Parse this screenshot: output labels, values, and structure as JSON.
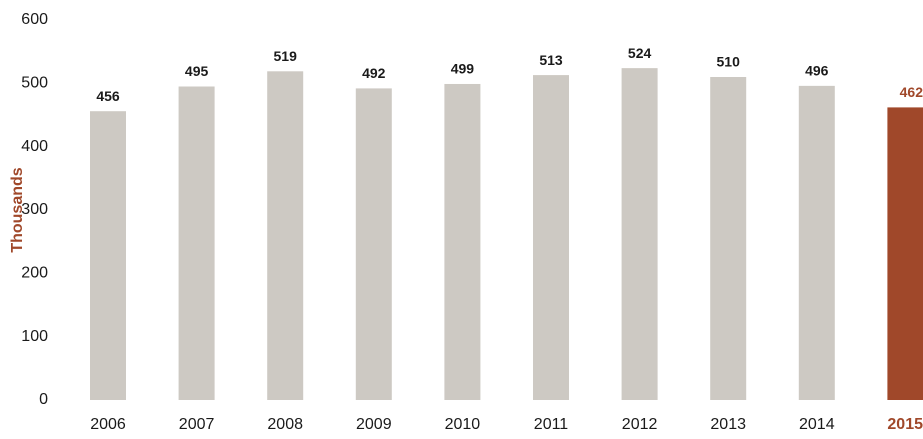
{
  "chart_data": {
    "type": "bar",
    "y_label": "Thousands",
    "categories": [
      "2006",
      "2007",
      "2008",
      "2009",
      "2010",
      "2011",
      "2012",
      "2013",
      "2014",
      "2015"
    ],
    "values": [
      456,
      495,
      519,
      492,
      499,
      513,
      524,
      510,
      496,
      462
    ],
    "colors": [
      "#cdc9c3",
      "#cdc9c3",
      "#cdc9c3",
      "#cdc9c3",
      "#cdc9c3",
      "#cdc9c3",
      "#cdc9c3",
      "#cdc9c3",
      "#cdc9c3",
      "#a0482a"
    ],
    "ylim": [
      0,
      600
    ],
    "yticks": [
      0,
      100,
      200,
      300,
      400,
      500,
      600
    ],
    "grid": false
  }
}
